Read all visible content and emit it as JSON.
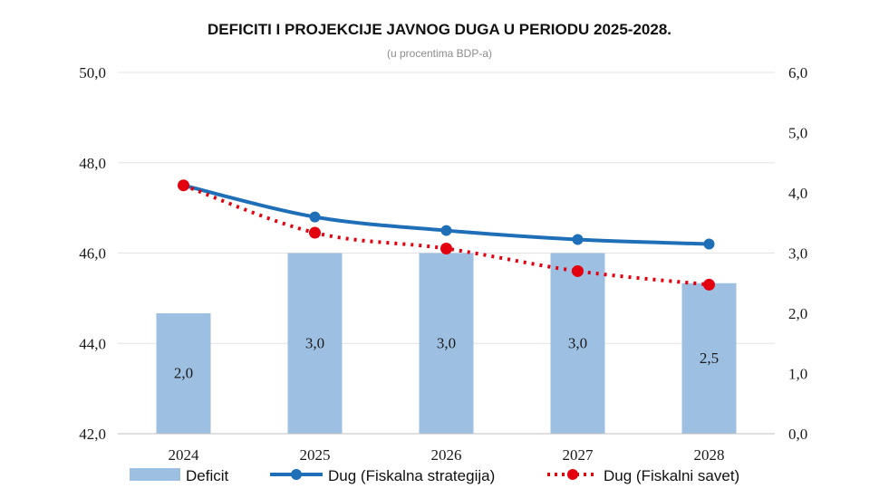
{
  "chart_data": {
    "type": "bar",
    "title": "DEFICITI I PROJEKCIJE JAVNOG DUGA U PERIODU 2025-2028.",
    "subtitle": "(u procentima BDP-a)",
    "categories": [
      "2024",
      "2025",
      "2026",
      "2027",
      "2028"
    ],
    "y_left": {
      "range": [
        42.0,
        50.0
      ],
      "ticks": [
        "42,0",
        "44,0",
        "46,0",
        "48,0",
        "50,0"
      ]
    },
    "y_right": {
      "range": [
        0.0,
        6.0
      ],
      "ticks": [
        "0,0",
        "1,0",
        "2,0",
        "3,0",
        "4,0",
        "5,0",
        "6,0"
      ]
    },
    "grid": true,
    "legend_position": "bottom",
    "series": [
      {
        "name": "Deficit",
        "type": "bar",
        "axis": "right",
        "color": "#9dc0e2",
        "values": [
          2.0,
          3.0,
          3.0,
          3.0,
          2.5
        ],
        "labels": [
          "2,0",
          "3,0",
          "3,0",
          "3,0",
          "2,5"
        ]
      },
      {
        "name": "Dug (Fiskalna strategija)",
        "type": "line",
        "axis": "left",
        "color": "#1f6fb8",
        "values": [
          47.5,
          46.8,
          46.5,
          46.3,
          46.2
        ]
      },
      {
        "name": "Dug (Fiskalni savet)",
        "type": "line-dotted",
        "axis": "left",
        "color": "#e3000f",
        "values": [
          47.5,
          46.45,
          46.1,
          45.6,
          45.3
        ]
      }
    ]
  }
}
